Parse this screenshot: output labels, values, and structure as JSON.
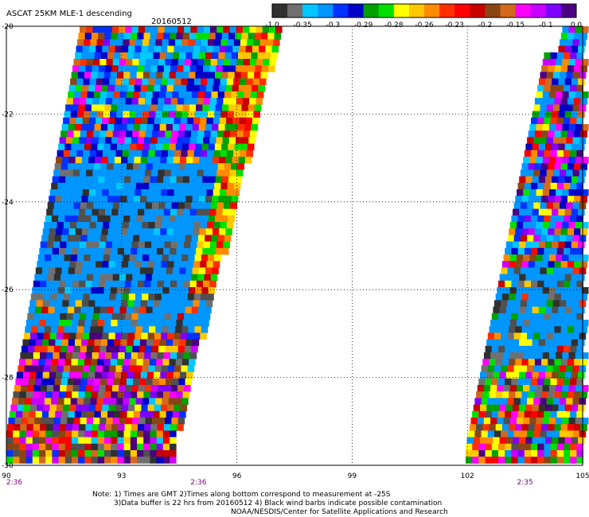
{
  "header": {
    "title": "ASCAT 25KM MLE-1 descending",
    "date": "20160512"
  },
  "chart_data": {
    "type": "heatmap",
    "x_ticks": [
      "90",
      "93",
      "96",
      "99",
      "102",
      "105"
    ],
    "y_ticks": [
      "-20",
      "-22",
      "-24",
      "-26",
      "-28",
      "-30"
    ],
    "xlim": [
      90,
      105
    ],
    "ylim": [
      -30,
      -20
    ],
    "grid": true,
    "time_labels": [
      {
        "lon": 90,
        "text": "2:36"
      },
      {
        "lon": 95,
        "text": "2:36"
      },
      {
        "lon": 103.5,
        "text": "2:35"
      }
    ],
    "colorbar": {
      "ticks": [
        "-1.0",
        "-0.35",
        "-0.3",
        "-0.29",
        "-0.28",
        "-0.26",
        "-0.23",
        "-0.2",
        "-0.15",
        "-0.1",
        "0.0"
      ],
      "colors": [
        "#303030",
        "#707070",
        "#00c8ff",
        "#0096ff",
        "#0032ff",
        "#0000c8",
        "#00a000",
        "#00e000",
        "#ffff00",
        "#ffc800",
        "#ff8c00",
        "#ff3000",
        "#ff0000",
        "#c80000",
        "#8b4513",
        "#d2691e",
        "#ff00ff",
        "#c800ff",
        "#8000ff",
        "#4b0082"
      ]
    },
    "swaths": [
      {
        "name": "left",
        "lon_range": [
          90,
          97
        ]
      },
      {
        "name": "right",
        "lon_range": [
          102,
          105
        ]
      }
    ]
  },
  "notes": [
    "Note: 1) Times are GMT 2)Times along bottom correspond to measurement at -25S",
    "3)Data buffer is 22 hrs from 20160512 4) Black wind barbs indicate possible contamination",
    "NOAA/NESDIS/Center for Satellite Applications and Research"
  ]
}
